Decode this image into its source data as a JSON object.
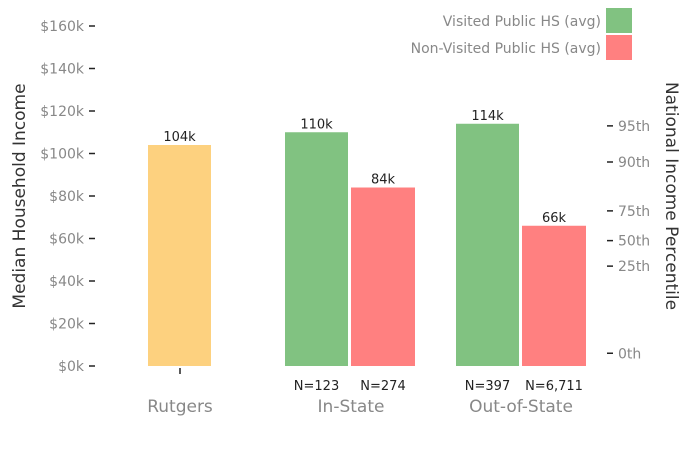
{
  "chart_data": {
    "type": "bar",
    "ylabel": "Median Household Income",
    "y2label": "National Income Percentile",
    "ylim": [
      0,
      160000
    ],
    "yticks": [
      {
        "value": 0,
        "label": "$0k"
      },
      {
        "value": 20000,
        "label": "$20k"
      },
      {
        "value": 40000,
        "label": "$40k"
      },
      {
        "value": 60000,
        "label": "$60k"
      },
      {
        "value": 80000,
        "label": "$80k"
      },
      {
        "value": 100000,
        "label": "$100k"
      },
      {
        "value": 120000,
        "label": "$120k"
      },
      {
        "value": 140000,
        "label": "$140k"
      },
      {
        "value": 160000,
        "label": "$160k"
      }
    ],
    "y2ticks": [
      {
        "value": 6000,
        "label": "0th"
      },
      {
        "value": 47000,
        "label": "25th"
      },
      {
        "value": 59000,
        "label": "50th"
      },
      {
        "value": 73000,
        "label": "75th"
      },
      {
        "value": 96000,
        "label": "90th"
      },
      {
        "value": 113000,
        "label": "95th"
      }
    ],
    "categories": [
      "Rutgers",
      "In-State",
      "Out-of-State"
    ],
    "bars": [
      {
        "category": "Rutgers",
        "series": "Rutgers",
        "value": 104000,
        "label": "104k",
        "n": ""
      },
      {
        "category": "In-State",
        "series": "Visited Public HS (avg)",
        "value": 110000,
        "label": "110k",
        "n": "N=123"
      },
      {
        "category": "In-State",
        "series": "Non-Visited Public HS (avg)",
        "value": 84000,
        "label": "84k",
        "n": "N=274"
      },
      {
        "category": "Out-of-State",
        "series": "Visited Public HS (avg)",
        "value": 114000,
        "label": "114k",
        "n": "N=397"
      },
      {
        "category": "Out-of-State",
        "series": "Non-Visited Public HS (avg)",
        "value": 66000,
        "label": "66k",
        "n": "N=6,711"
      }
    ],
    "legend": [
      {
        "name": "Visited Public HS (avg)",
        "color": "#81c281"
      },
      {
        "name": "Non-Visited Public HS (avg)",
        "color": "#ff8080"
      }
    ],
    "legend_position": "top-right",
    "colors": {
      "Rutgers": "#fdd17f",
      "Visited Public HS (avg)": "#81c281",
      "Non-Visited Public HS (avg)": "#ff8080"
    },
    "grid": false
  }
}
